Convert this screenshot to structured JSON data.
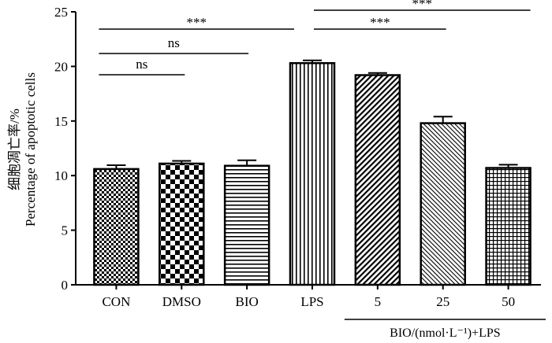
{
  "chart_data": {
    "type": "bar",
    "ylabel_cn": "细胞凋亡率/%",
    "ylabel_en": "Percentage of apoptotic cells",
    "ylim": [
      0,
      25
    ],
    "yticks": [
      0,
      5,
      10,
      15,
      20,
      25
    ],
    "categories": [
      "CON",
      "DMSO",
      "BIO",
      "LPS",
      "5",
      "25",
      "50"
    ],
    "values": [
      10.6,
      11.1,
      10.9,
      20.3,
      19.2,
      14.8,
      10.7
    ],
    "errors": [
      0.35,
      0.25,
      0.5,
      0.25,
      0.2,
      0.6,
      0.3
    ],
    "patterns": [
      "checker-small",
      "checker-large",
      "horizontal",
      "vertical",
      "diagonal-dense",
      "diagonal-fine",
      "grid"
    ],
    "group_label": "BIO/(nmol·L⁻¹)+LPS",
    "group_categories": [
      "5",
      "25",
      "50"
    ],
    "significance": [
      {
        "from": "CON",
        "to": "DMSO",
        "label": "ns"
      },
      {
        "from": "CON",
        "to": "BIO",
        "label": "ns"
      },
      {
        "from": "CON",
        "to": "LPS",
        "label": "***"
      },
      {
        "from": "LPS",
        "to": "25",
        "label": "***"
      },
      {
        "from": "LPS",
        "to": "50",
        "label": "***"
      }
    ],
    "grid": false,
    "legend": "none"
  }
}
